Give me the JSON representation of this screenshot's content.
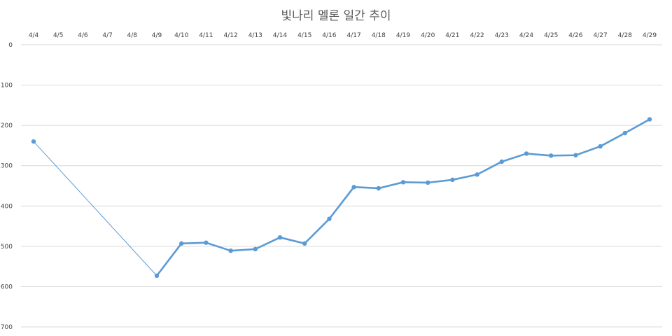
{
  "chart_data": {
    "type": "line",
    "title": "빛나리 멜론 일간 추이",
    "xlabel": "",
    "ylabel": "",
    "categories": [
      "4/4",
      "4/5",
      "4/6",
      "4/7",
      "4/8",
      "4/9",
      "4/10",
      "4/11",
      "4/12",
      "4/13",
      "4/14",
      "4/15",
      "4/16",
      "4/17",
      "4/18",
      "4/19",
      "4/20",
      "4/21",
      "4/22",
      "4/23",
      "4/24",
      "4/25",
      "4/26",
      "4/27",
      "4/28",
      "4/29"
    ],
    "series": [
      {
        "values": [
          240,
          null,
          null,
          null,
          null,
          573,
          493,
          491,
          511,
          507,
          478,
          493,
          432,
          353,
          356,
          341,
          342,
          335,
          322,
          290,
          270,
          275,
          274,
          252,
          219,
          185
        ],
        "color": "#5b9bd5"
      }
    ],
    "ylim": [
      0,
      700
    ],
    "yticks": [
      0,
      100,
      200,
      300,
      400,
      500,
      600,
      700
    ],
    "y_reversed": true,
    "x_axis_position": "top",
    "grid": true,
    "legend": "none"
  }
}
